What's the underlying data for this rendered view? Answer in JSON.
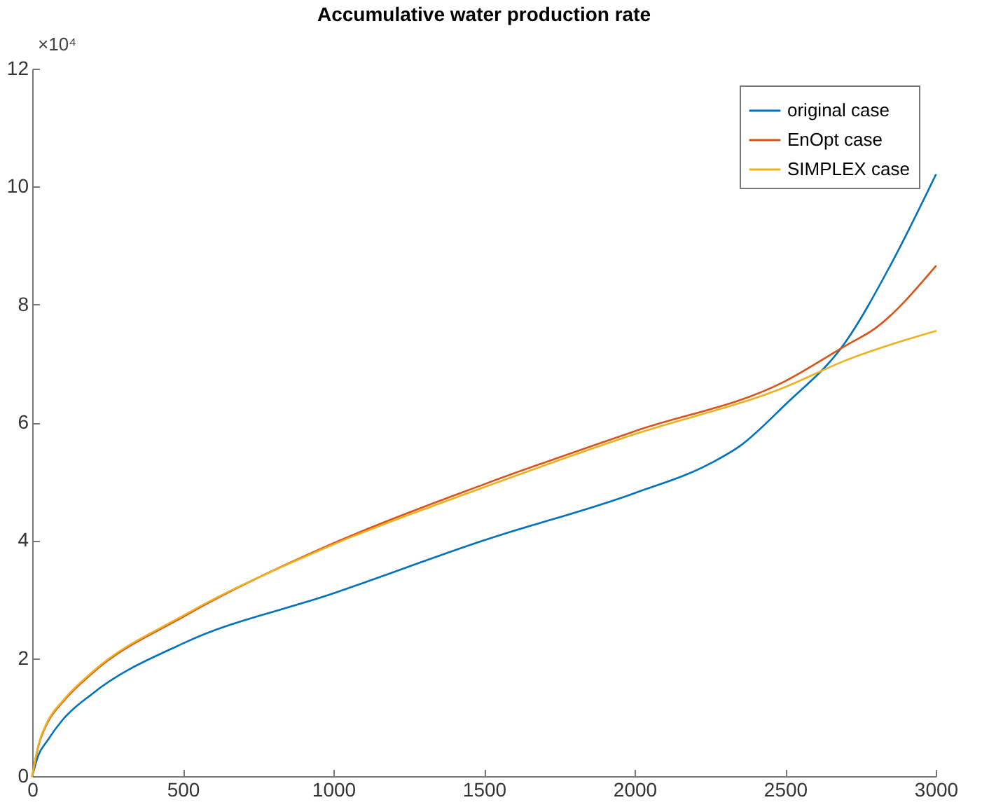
{
  "chart_data": {
    "type": "line",
    "title": "Accumulative water production rate",
    "annotations": [
      "×10⁴"
    ],
    "xlim": [
      0,
      3000
    ],
    "xticks": [
      0,
      500,
      1000,
      1500,
      2000,
      2500,
      3000
    ],
    "ylim": [
      0,
      12
    ],
    "yticks": [
      0,
      2,
      4,
      6,
      8,
      10,
      12
    ],
    "grid": false,
    "legend": "top right",
    "marker": "none",
    "line_style": "solid",
    "series": [
      {
        "name": "original case",
        "color": "#0072bd",
        "x": [
          0,
          20,
          50,
          100,
          200,
          500,
          1000,
          1500,
          2000,
          2250,
          2350,
          2500,
          2700,
          2850,
          3000
        ],
        "values": [
          0,
          0.35,
          0.6,
          0.95,
          1.4,
          2.25,
          3.1,
          4.0,
          4.8,
          5.3,
          5.6,
          6.3,
          7.36,
          8.67,
          10.2
        ]
      },
      {
        "name": "EnOpt case",
        "color": "#d95319",
        "x": [
          0,
          20,
          50,
          100,
          200,
          500,
          1000,
          1500,
          2000,
          2500,
          2700,
          2800,
          3000
        ],
        "values": [
          0,
          0.5,
          0.9,
          1.25,
          1.75,
          2.7,
          3.95,
          4.95,
          5.85,
          6.7,
          7.3,
          7.6,
          8.65
        ]
      },
      {
        "name": "SIMPLEX case",
        "color": "#edb120",
        "x": [
          0,
          20,
          50,
          100,
          200,
          500,
          1000,
          1500,
          2000,
          2500,
          2700,
          3000
        ],
        "values": [
          0,
          0.52,
          0.92,
          1.27,
          1.77,
          2.72,
          3.93,
          4.9,
          5.8,
          6.6,
          7.05,
          7.55
        ]
      }
    ]
  }
}
